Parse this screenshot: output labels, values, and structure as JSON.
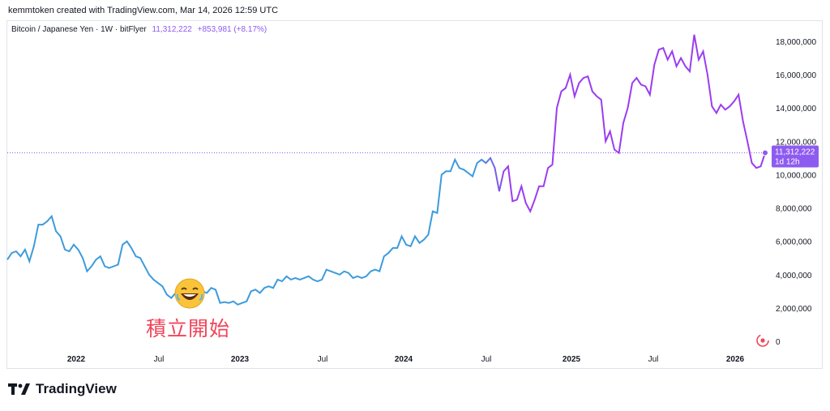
{
  "header": {
    "created_line": "kemmtoken created with TradingView.com, Mar 14, 2026 12:59 UTC"
  },
  "legend": {
    "symbol": "Bitcoin / Japanese Yen · 1W · bitFlyer",
    "price": "11,312,222",
    "change": "+853,981 (+8.17%)"
  },
  "price_label": {
    "value": "11,312,222",
    "countdown": "1d 12h"
  },
  "annotation": {
    "text": "積立開始"
  },
  "footer": {
    "brand": "TradingView"
  },
  "colors": {
    "line_start": "#3d9bdc",
    "line_end": "#9b3cf0",
    "price_label_bg": "#8e5bf0",
    "annotation": "#f0455a"
  },
  "chart_data": {
    "type": "line",
    "title": "",
    "xlabel": "",
    "ylabel": "",
    "ylim": [
      -1000000,
      19500000
    ],
    "x_ticks": [
      "2022",
      "Jul",
      "2023",
      "Jul",
      "2024",
      "Jul",
      "2025",
      "Jul",
      "2026"
    ],
    "y_ticks": [
      "0",
      "2,000,000",
      "4,000,000",
      "6,000,000",
      "8,000,000",
      "10,000,000",
      "12,000,000",
      "14,000,000",
      "16,000,000",
      "18,000,000"
    ],
    "y_tick_values": [
      0,
      2000000,
      4000000,
      6000000,
      8000000,
      10000000,
      12000000,
      14000000,
      16000000,
      18000000
    ],
    "last_value": 11312222,
    "series": [
      {
        "values": [
          4900000,
          5300000,
          5400000,
          5100000,
          5500000,
          4800000,
          5700000,
          7000000,
          7000000,
          7200000,
          7500000,
          6600000,
          6300000,
          5500000,
          5400000,
          5800000,
          5500000,
          5000000,
          4200000,
          4500000,
          4900000,
          5100000,
          4500000,
          4400000,
          4500000,
          4600000,
          5800000,
          6000000,
          5600000,
          5100000,
          5000000,
          4500000,
          4000000,
          3700000,
          3500000,
          3300000,
          2800000,
          2600000,
          2900000,
          3100000,
          3200000,
          3100000,
          3300000,
          2900000,
          3000000,
          2900000,
          3200000,
          3100000,
          2300000,
          2350000,
          2300000,
          2400000,
          2200000,
          2300000,
          2400000,
          3000000,
          3100000,
          2900000,
          3200000,
          3300000,
          3200000,
          3700000,
          3600000,
          3900000,
          3700000,
          3800000,
          3700000,
          3800000,
          3900000,
          3700000,
          3600000,
          3700000,
          4300000,
          4200000,
          4100000,
          4000000,
          4200000,
          4100000,
          3800000,
          3900000,
          3800000,
          3900000,
          4200000,
          4300000,
          4200000,
          5100000,
          5300000,
          5600000,
          5600000,
          6300000,
          5800000,
          5700000,
          6300000,
          5900000,
          6100000,
          6400000,
          7800000,
          7700000,
          10000000,
          10200000,
          10200000,
          10900000,
          10400000,
          10300000,
          10100000,
          9900000,
          10700000,
          10900000,
          10700000,
          11000000,
          10400000,
          9000000,
          10200000,
          10500000,
          8400000,
          8500000,
          9300000,
          8300000,
          7800000,
          8500000,
          9300000,
          9300000,
          10400000,
          10600000,
          14000000,
          15000000,
          15200000,
          16000000,
          14700000,
          15500000,
          15800000,
          15900000,
          15000000,
          14700000,
          14500000,
          12000000,
          12600000,
          11500000,
          11300000,
          13100000,
          14000000,
          15500000,
          15800000,
          15400000,
          15300000,
          14800000,
          16600000,
          17500000,
          17600000,
          16900000,
          17400000,
          16500000,
          17000000,
          16500000,
          16200000,
          18400000,
          16900000,
          17400000,
          16000000,
          14100000,
          13700000,
          14200000,
          13900000,
          14100000,
          14400000,
          14800000,
          13200000,
          12000000,
          10700000,
          10400000,
          10500000,
          11312222
        ]
      }
    ]
  }
}
